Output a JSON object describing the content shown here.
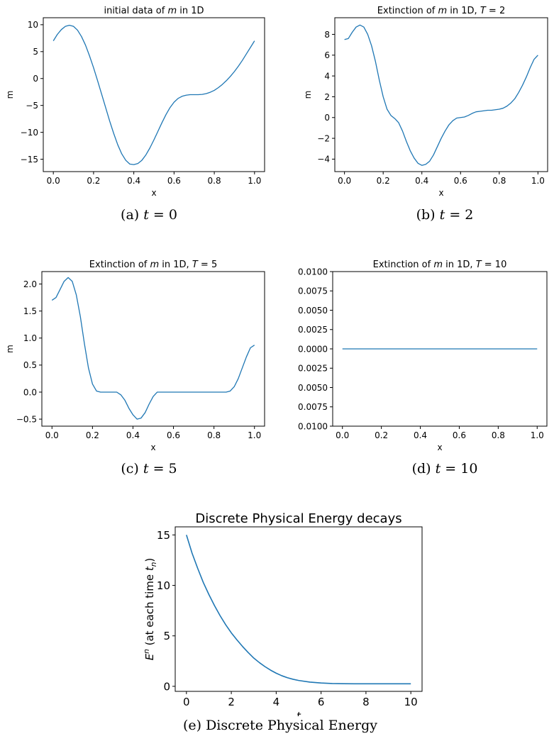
{
  "chart_data": [
    {
      "type": "line",
      "panel": "a",
      "title": "initial data of m in 1D",
      "title_parts": [
        "initial data of ",
        "m",
        " in 1D"
      ],
      "xlabel": "x",
      "ylabel": "m",
      "caption": "(a) t = 0",
      "caption_parts": [
        "(a) ",
        "t",
        " = 0"
      ],
      "xlim": [
        -0.05,
        1.05
      ],
      "ylim": [
        -17.3,
        11.3
      ],
      "xticks": [
        0.0,
        0.2,
        0.4,
        0.6,
        0.8,
        1.0
      ],
      "xticklabels": [
        "0.0",
        "0.2",
        "0.4",
        "0.6",
        "0.8",
        "1.0"
      ],
      "yticks": [
        10,
        5,
        0,
        -5,
        -10,
        -15
      ],
      "yticklabels": [
        "10",
        "5",
        "0",
        "−5",
        "−10",
        "−15"
      ],
      "line_color": "#1f77b4",
      "series": [
        {
          "x": [
            0.0,
            0.02,
            0.04,
            0.06,
            0.08,
            0.1,
            0.12,
            0.14,
            0.16,
            0.18,
            0.2,
            0.22,
            0.24,
            0.26,
            0.28,
            0.3,
            0.32,
            0.34,
            0.36,
            0.38,
            0.4,
            0.42,
            0.44,
            0.46,
            0.48,
            0.5,
            0.52,
            0.54,
            0.56,
            0.58,
            0.6,
            0.62,
            0.64,
            0.66,
            0.68,
            0.7,
            0.72,
            0.74,
            0.76,
            0.78,
            0.8,
            0.82,
            0.84,
            0.86,
            0.88,
            0.9,
            0.92,
            0.94,
            0.96,
            0.98,
            1.0
          ],
          "y": [
            7.0,
            8.2,
            9.1,
            9.7,
            9.9,
            9.7,
            9.0,
            7.8,
            6.2,
            4.2,
            2.0,
            -0.4,
            -2.9,
            -5.4,
            -7.9,
            -10.2,
            -12.3,
            -14.0,
            -15.2,
            -15.9,
            -16.0,
            -15.8,
            -15.2,
            -14.2,
            -12.9,
            -11.4,
            -9.8,
            -8.2,
            -6.7,
            -5.4,
            -4.4,
            -3.7,
            -3.3,
            -3.1,
            -3.0,
            -3.0,
            -3.0,
            -2.95,
            -2.8,
            -2.55,
            -2.2,
            -1.7,
            -1.1,
            -0.4,
            0.4,
            1.3,
            2.3,
            3.4,
            4.6,
            5.8,
            7.0
          ]
        }
      ]
    },
    {
      "type": "line",
      "panel": "b",
      "title": "Extinction of m in 1D, T = 2",
      "title_parts": [
        "Extinction of ",
        "m",
        " in 1D, ",
        "T",
        " = 2"
      ],
      "xlabel": "x",
      "ylabel": "m",
      "caption": "(b) t = 2",
      "caption_parts": [
        "(b) ",
        "t",
        " = 2"
      ],
      "xlim": [
        -0.05,
        1.05
      ],
      "ylim": [
        -5.2,
        9.6
      ],
      "xticks": [
        0.0,
        0.2,
        0.4,
        0.6,
        0.8,
        1.0
      ],
      "xticklabels": [
        "0.0",
        "0.2",
        "0.4",
        "0.6",
        "0.8",
        "1.0"
      ],
      "yticks": [
        8,
        6,
        4,
        2,
        0,
        -2,
        -4
      ],
      "yticklabels": [
        "8",
        "6",
        "4",
        "2",
        "0",
        "−2",
        "−4"
      ],
      "line_color": "#1f77b4",
      "series": [
        {
          "x": [
            0.0,
            0.02,
            0.04,
            0.06,
            0.08,
            0.1,
            0.12,
            0.14,
            0.16,
            0.18,
            0.2,
            0.22,
            0.24,
            0.26,
            0.28,
            0.3,
            0.32,
            0.34,
            0.36,
            0.38,
            0.4,
            0.42,
            0.44,
            0.46,
            0.48,
            0.5,
            0.52,
            0.54,
            0.56,
            0.58,
            0.6,
            0.62,
            0.64,
            0.66,
            0.68,
            0.7,
            0.72,
            0.74,
            0.76,
            0.78,
            0.8,
            0.82,
            0.84,
            0.86,
            0.88,
            0.9,
            0.92,
            0.94,
            0.96,
            0.98,
            1.0
          ],
          "y": [
            7.5,
            7.6,
            8.2,
            8.7,
            8.9,
            8.7,
            8.0,
            6.9,
            5.4,
            3.6,
            2.0,
            0.8,
            0.2,
            -0.1,
            -0.5,
            -1.3,
            -2.3,
            -3.2,
            -3.9,
            -4.4,
            -4.6,
            -4.5,
            -4.2,
            -3.6,
            -2.8,
            -2.0,
            -1.3,
            -0.7,
            -0.3,
            -0.05,
            0.0,
            0.05,
            0.2,
            0.4,
            0.55,
            0.6,
            0.65,
            0.7,
            0.7,
            0.75,
            0.8,
            0.9,
            1.1,
            1.4,
            1.8,
            2.4,
            3.1,
            3.9,
            4.8,
            5.6,
            6.0
          ]
        }
      ]
    },
    {
      "type": "line",
      "panel": "c",
      "title": "Extinction of m in 1D, T = 5",
      "title_parts": [
        "Extinction of ",
        "m",
        " in 1D, ",
        "T",
        " = 5"
      ],
      "xlabel": "x",
      "ylabel": "m",
      "caption": "(c) t = 5",
      "caption_parts": [
        "(c) ",
        "t",
        " = 5"
      ],
      "xlim": [
        -0.05,
        1.05
      ],
      "ylim": [
        -0.63,
        2.23
      ],
      "xticks": [
        0.0,
        0.2,
        0.4,
        0.6,
        0.8,
        1.0
      ],
      "xticklabels": [
        "0.0",
        "0.2",
        "0.4",
        "0.6",
        "0.8",
        "1.0"
      ],
      "yticks": [
        2.0,
        1.5,
        1.0,
        0.5,
        0.0,
        -0.5
      ],
      "yticklabels": [
        "2.0",
        "1.5",
        "1.0",
        "0.5",
        "0.0",
        "−0.5"
      ],
      "line_color": "#1f77b4",
      "series": [
        {
          "x": [
            0.0,
            0.02,
            0.04,
            0.06,
            0.08,
            0.1,
            0.12,
            0.14,
            0.16,
            0.18,
            0.2,
            0.22,
            0.24,
            0.26,
            0.28,
            0.3,
            0.32,
            0.34,
            0.36,
            0.38,
            0.4,
            0.42,
            0.44,
            0.46,
            0.48,
            0.5,
            0.52,
            0.54,
            0.56,
            0.58,
            0.6,
            0.62,
            0.64,
            0.66,
            0.68,
            0.7,
            0.72,
            0.74,
            0.76,
            0.78,
            0.8,
            0.82,
            0.84,
            0.86,
            0.88,
            0.9,
            0.92,
            0.94,
            0.96,
            0.98,
            1.0
          ],
          "y": [
            1.7,
            1.75,
            1.9,
            2.05,
            2.12,
            2.05,
            1.8,
            1.4,
            0.9,
            0.45,
            0.15,
            0.02,
            0.0,
            0.0,
            0.0,
            0.0,
            0.0,
            -0.05,
            -0.15,
            -0.3,
            -0.42,
            -0.5,
            -0.48,
            -0.38,
            -0.22,
            -0.08,
            0.0,
            0.0,
            0.0,
            0.0,
            0.0,
            0.0,
            0.0,
            0.0,
            0.0,
            0.0,
            0.0,
            0.0,
            0.0,
            0.0,
            0.0,
            0.0,
            0.0,
            0.0,
            0.02,
            0.1,
            0.25,
            0.45,
            0.65,
            0.82,
            0.87
          ]
        }
      ]
    },
    {
      "type": "line",
      "panel": "d",
      "title": "Extinction of m in 1D, T = 10",
      "title_parts": [
        "Extinction of ",
        "m",
        " in 1D, ",
        "T",
        " = 10"
      ],
      "xlabel": "x",
      "ylabel": "",
      "caption": "(d) t = 10",
      "caption_parts": [
        "(d) ",
        "t",
        " = 10"
      ],
      "xlim": [
        -0.05,
        1.05
      ],
      "ylim": [
        -0.01,
        0.01
      ],
      "xticks": [
        0.0,
        0.2,
        0.4,
        0.6,
        0.8,
        1.0
      ],
      "xticklabels": [
        "0.0",
        "0.2",
        "0.4",
        "0.6",
        "0.8",
        "1.0"
      ],
      "yticks": [
        0.01,
        0.0075,
        0.005,
        0.0025,
        0.0,
        -0.0025,
        -0.005,
        -0.0075,
        -0.01
      ],
      "yticklabels": [
        "0.0100",
        "0.0075",
        "0.0050",
        "0.0025",
        "0.0000",
        "0.0025",
        "0.0050",
        "0.0075",
        "0.0100"
      ],
      "line_color": "#1f77b4",
      "series": [
        {
          "x": [
            0.0,
            1.0
          ],
          "y": [
            0.0,
            0.0
          ]
        }
      ]
    },
    {
      "type": "line",
      "panel": "e",
      "title": "Discrete Physical Energy decays",
      "title_parts": [
        "Discrete Physical Energy decays"
      ],
      "xlabel": "t",
      "ylabel": "E^n (at each time t_n)",
      "ylabel_parts": [
        "E",
        "n",
        " (at each time ",
        "t",
        "n",
        ")"
      ],
      "caption": "(e) Discrete Physical Energy",
      "caption_parts": [
        "(e) Discrete Physical Energy"
      ],
      "xlim": [
        -0.5,
        10.5
      ],
      "ylim": [
        -0.5,
        15.8
      ],
      "xticks": [
        0,
        2,
        4,
        6,
        8,
        10
      ],
      "xticklabels": [
        "0",
        "2",
        "4",
        "6",
        "8",
        "10"
      ],
      "yticks": [
        15,
        10,
        5,
        0
      ],
      "yticklabels": [
        "15",
        "10",
        "5",
        "0"
      ],
      "line_color": "#1f77b4",
      "series": [
        {
          "x": [
            0,
            0.25,
            0.5,
            0.75,
            1.0,
            1.25,
            1.5,
            1.75,
            2.0,
            2.25,
            2.5,
            2.75,
            3.0,
            3.25,
            3.5,
            3.75,
            4.0,
            4.25,
            4.5,
            4.75,
            5.0,
            5.5,
            6.0,
            6.5,
            7.0,
            7.5,
            8.0,
            8.5,
            9.0,
            9.5,
            10.0
          ],
          "y": [
            15.0,
            13.2,
            11.7,
            10.3,
            9.1,
            8.0,
            7.0,
            6.1,
            5.3,
            4.6,
            3.95,
            3.35,
            2.8,
            2.35,
            1.95,
            1.6,
            1.3,
            1.05,
            0.85,
            0.7,
            0.58,
            0.42,
            0.33,
            0.28,
            0.26,
            0.25,
            0.25,
            0.25,
            0.25,
            0.25,
            0.25
          ]
        }
      ]
    }
  ]
}
